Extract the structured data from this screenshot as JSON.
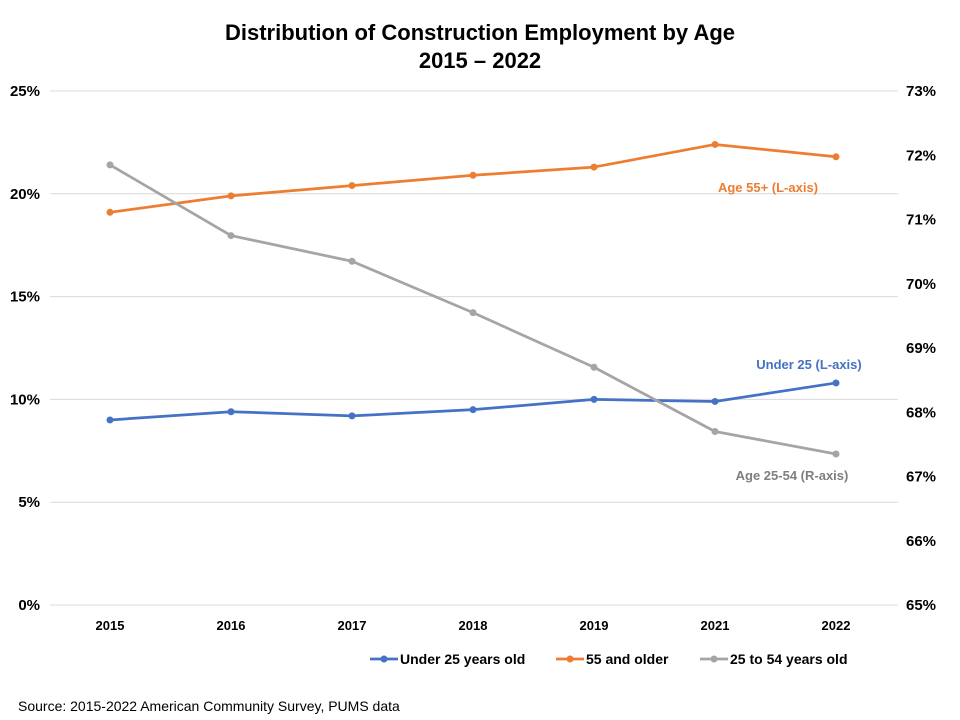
{
  "chart_data": {
    "type": "line",
    "title_line1": "Distribution of Construction Employment by Age",
    "title_line2": "2015 – 2022",
    "categories": [
      "2015",
      "2016",
      "2017",
      "2018",
      "2019",
      "2021",
      "2022"
    ],
    "y_left": {
      "min": 0,
      "max": 25,
      "ticks": [
        0,
        5,
        10,
        15,
        20,
        25
      ],
      "suffix": "%"
    },
    "y_right": {
      "min": 65,
      "max": 73,
      "ticks": [
        65,
        66,
        67,
        68,
        69,
        70,
        71,
        72,
        73
      ],
      "suffix": "%"
    },
    "grid": true,
    "legend_position": "bottom",
    "series": [
      {
        "name": "Under 25 years old",
        "axis": "left",
        "color": "#4472C4",
        "values": [
          9.0,
          9.4,
          9.2,
          9.5,
          10.0,
          9.9,
          10.8
        ]
      },
      {
        "name": "55 and older",
        "axis": "left",
        "color": "#ED7D31",
        "values": [
          19.1,
          19.9,
          20.4,
          20.9,
          21.3,
          22.4,
          21.8
        ]
      },
      {
        "name": "25 to 54 years old",
        "axis": "right",
        "color": "#A5A5A5",
        "values": [
          71.85,
          70.75,
          70.35,
          69.55,
          68.7,
          67.7,
          67.35
        ]
      }
    ],
    "annotations": [
      {
        "text": "Age 55+ (L-axis)",
        "color": "#ED7D31"
      },
      {
        "text": "Under 25 (L-axis)",
        "color": "#4472C4"
      },
      {
        "text": "Age 25-54 (R-axis)",
        "color": "#7F7F7F"
      }
    ],
    "source": "Source: 2015-2022 American Community Survey, PUMS data"
  }
}
